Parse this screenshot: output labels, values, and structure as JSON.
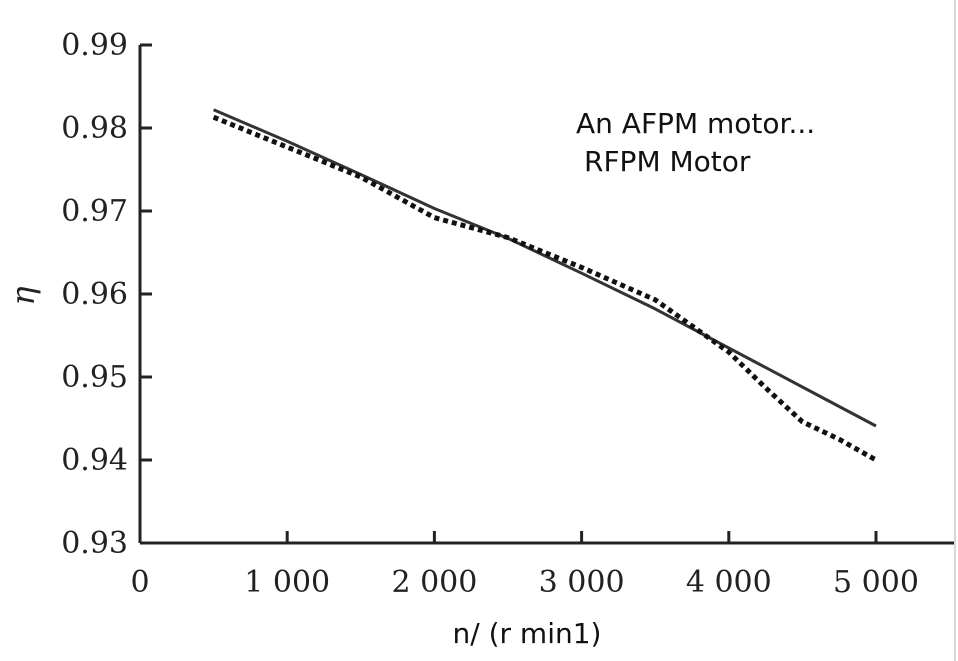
{
  "chart_data": {
    "type": "line",
    "title": "",
    "xlabel": "n/ (r min1)",
    "ylabel": "η",
    "xlim": [
      0,
      5400
    ],
    "ylim": [
      0.93,
      0.99
    ],
    "x_ticks": [
      0,
      1000,
      2000,
      3000,
      4000,
      5000
    ],
    "x_tick_labels": [
      "0",
      "1 000",
      "2 000",
      "3 000",
      "4 000",
      "5 000"
    ],
    "y_ticks": [
      0.93,
      0.94,
      0.95,
      0.96,
      0.97,
      0.98,
      0.99
    ],
    "y_tick_labels": [
      "0.93",
      "0.94",
      "0.95",
      "0.96",
      "0.97",
      "0.98",
      "0.99"
    ],
    "grid": false,
    "legend_position": "top-right",
    "series": [
      {
        "name": "An AFPM motor...",
        "style": "solid",
        "color": "#333333",
        "x": [
          500,
          1000,
          1500,
          2000,
          2500,
          3000,
          3500,
          4000,
          4500,
          5000
        ],
        "y": [
          0.9822,
          0.9784,
          0.9744,
          0.9703,
          0.9667,
          0.9625,
          0.9582,
          0.9535,
          0.9488,
          0.9441
        ]
      },
      {
        "name": "RFPM Motor",
        "style": "dotted",
        "color": "#111111",
        "x": [
          500,
          1000,
          1500,
          2000,
          2500,
          3000,
          3500,
          4000,
          4250,
          4500,
          4750,
          5000
        ],
        "y": [
          0.9813,
          0.9777,
          0.9741,
          0.9692,
          0.9668,
          0.9632,
          0.9593,
          0.953,
          0.9487,
          0.9446,
          0.9425,
          0.94
        ]
      }
    ]
  }
}
